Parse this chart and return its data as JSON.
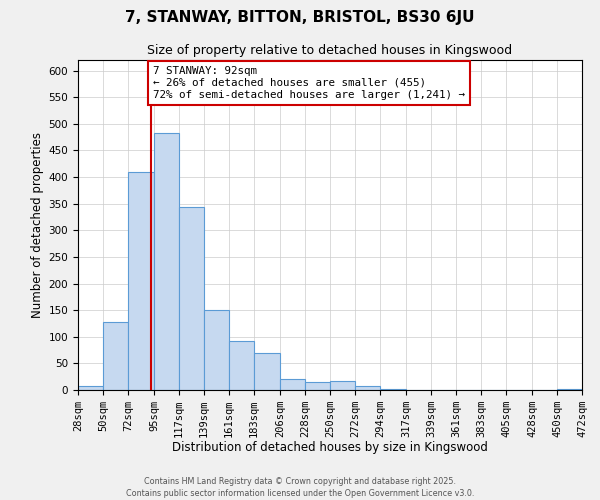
{
  "title": "7, STANWAY, BITTON, BRISTOL, BS30 6JU",
  "subtitle": "Size of property relative to detached houses in Kingswood",
  "xlabel": "Distribution of detached houses by size in Kingswood",
  "ylabel": "Number of detached properties",
  "bins": [
    28,
    50,
    72,
    95,
    117,
    139,
    161,
    183,
    206,
    228,
    250,
    272,
    294,
    317,
    339,
    361,
    383,
    405,
    428,
    450,
    472
  ],
  "counts": [
    8,
    128,
    409,
    483,
    344,
    150,
    92,
    70,
    21,
    15,
    16,
    7,
    1,
    0,
    0,
    0,
    0,
    0,
    0,
    2
  ],
  "bar_color": "#c6d9f0",
  "bar_edge_color": "#5b9bd5",
  "property_line_x": 92,
  "property_line_color": "#cc0000",
  "annotation_line1": "7 STANWAY: 92sqm",
  "annotation_line2": "← 26% of detached houses are smaller (455)",
  "annotation_line3": "72% of semi-detached houses are larger (1,241) →",
  "annotation_box_color": "#ffffff",
  "annotation_box_edge": "#cc0000",
  "ylim": [
    0,
    620
  ],
  "yticks": [
    0,
    50,
    100,
    150,
    200,
    250,
    300,
    350,
    400,
    450,
    500,
    550,
    600
  ],
  "tick_labels": [
    "28sqm",
    "50sqm",
    "72sqm",
    "95sqm",
    "117sqm",
    "139sqm",
    "161sqm",
    "183sqm",
    "206sqm",
    "228sqm",
    "250sqm",
    "272sqm",
    "294sqm",
    "317sqm",
    "339sqm",
    "361sqm",
    "383sqm",
    "405sqm",
    "428sqm",
    "450sqm",
    "472sqm"
  ],
  "footer1": "Contains HM Land Registry data © Crown copyright and database right 2025.",
  "footer2": "Contains public sector information licensed under the Open Government Licence v3.0.",
  "background_color": "#f0f0f0",
  "plot_bg_color": "#ffffff",
  "grid_color": "#cccccc"
}
